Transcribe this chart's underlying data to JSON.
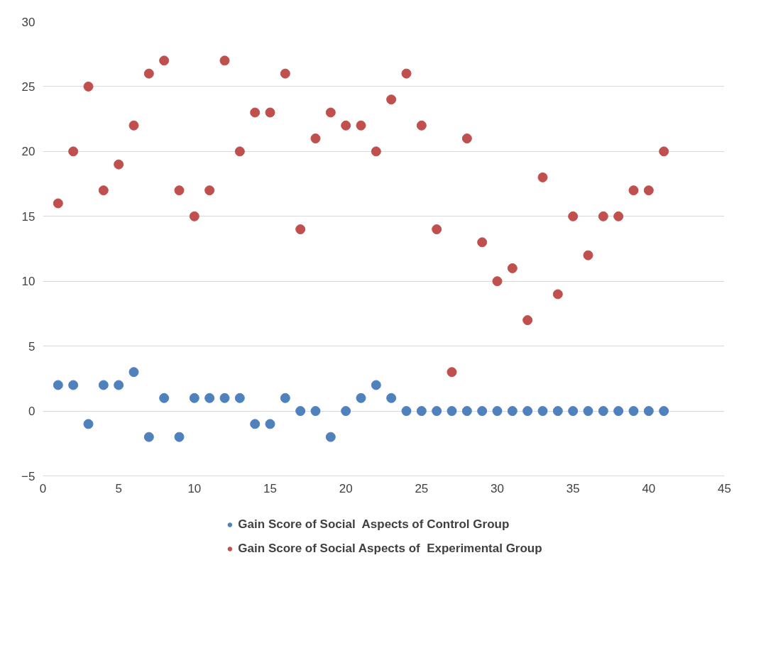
{
  "chart_data": {
    "type": "scatter",
    "x": [
      1,
      2,
      3,
      4,
      5,
      6,
      7,
      8,
      9,
      10,
      11,
      12,
      13,
      14,
      15,
      16,
      17,
      18,
      19,
      20,
      21,
      22,
      23,
      24,
      25,
      26,
      27,
      28,
      29,
      30,
      31,
      32,
      33,
      34,
      35,
      36,
      37,
      38,
      39,
      40,
      41
    ],
    "series": [
      {
        "name": "Gain Score of Social  Aspects of Control Group",
        "color": "#4f81bd",
        "values": [
          2,
          2,
          -1,
          2,
          2,
          3,
          -2,
          1,
          -2,
          1,
          1,
          1,
          1,
          -1,
          -1,
          1,
          0,
          0,
          -2,
          0,
          1,
          2,
          1,
          0,
          0,
          0,
          0,
          0,
          0,
          0,
          0,
          0,
          0,
          0,
          0,
          0,
          0,
          0,
          0,
          0,
          0
        ]
      },
      {
        "name": "Gain Score of Social Aspects of  Experimental Group",
        "color": "#c0504d",
        "values": [
          16,
          20,
          25,
          17,
          19,
          22,
          26,
          27,
          17,
          15,
          17,
          27,
          20,
          23,
          23,
          26,
          14,
          21,
          23,
          22,
          22,
          20,
          24,
          26,
          22,
          14,
          3,
          21,
          13,
          10,
          11,
          7,
          18,
          9,
          15,
          12,
          15,
          15,
          17,
          17,
          20
        ]
      }
    ],
    "xlim": [
      0,
      45
    ],
    "xticks": [
      0,
      5,
      10,
      15,
      20,
      25,
      30,
      35,
      40,
      45
    ],
    "ylim": [
      -5,
      30
    ],
    "yticks": [
      -5,
      0,
      5,
      10,
      15,
      20,
      25,
      30
    ],
    "grid": "y",
    "legend": "bottom",
    "marker": "circle"
  }
}
